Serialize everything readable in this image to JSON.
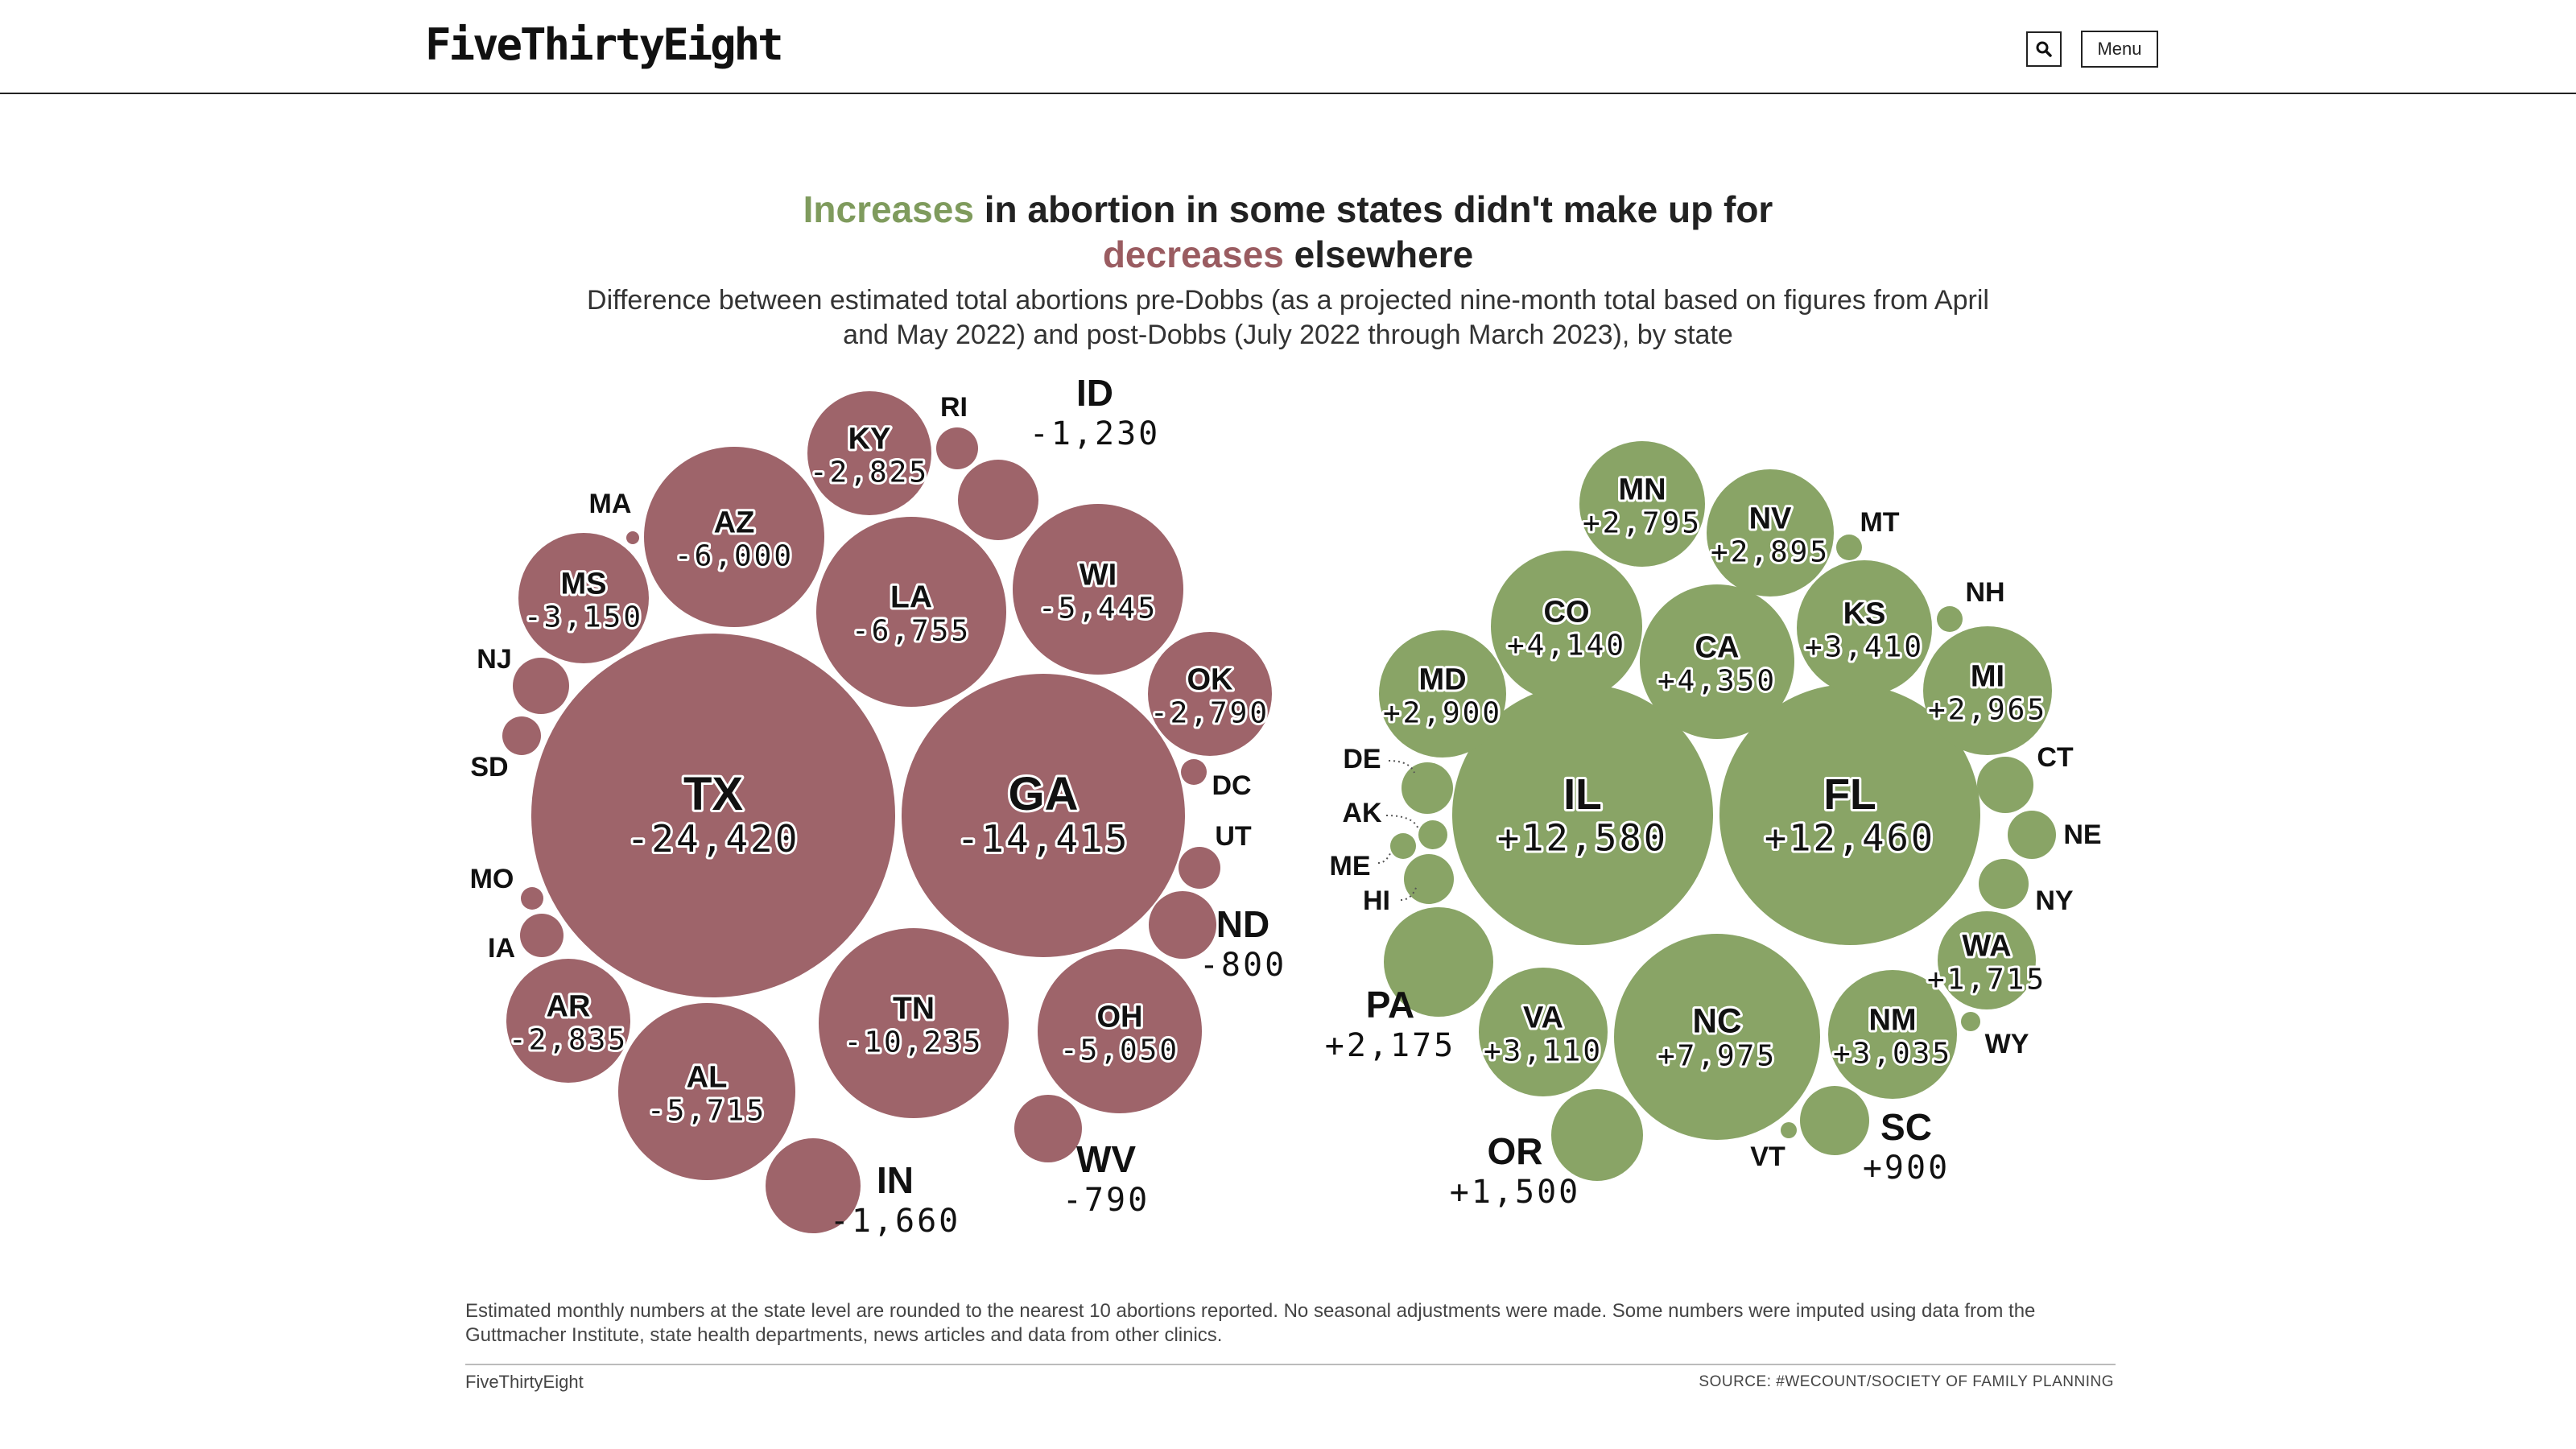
{
  "header": {
    "logo": "FiveThirtyEight",
    "menu_label": "Menu"
  },
  "title": {
    "increases": "Increases",
    "middle": " in abortion in some states didn't make up for",
    "decreases": "decreases",
    "end": " elsewhere"
  },
  "subtitle": "Difference between estimated total abortions pre-Dobbs (as a projected nine-month total based on figures from April and May 2022) and post-Dobbs (July 2022 through March 2023), by state",
  "footer": {
    "note": "Estimated monthly numbers at the state level are rounded to the nearest 10 abortions reported. No seasonal adjustments were made. Some numbers were imputed using data from the Guttmacher Institute, state health departments, news articles and data from other clinics.",
    "brand": "FiveThirtyEight",
    "source": "SOURCE: #WECOUNT/SOCIETY OF FAMILY PLANNING"
  },
  "colors": {
    "decrease": "#9e646a",
    "increase": "#89a466",
    "text": "#111111"
  },
  "chart_data": {
    "type": "bubble",
    "series": [
      {
        "name": "decreases",
        "points": [
          {
            "state": "TX",
            "value": -24420,
            "label": "-24,420"
          },
          {
            "state": "GA",
            "value": -14415,
            "label": "-14,415"
          },
          {
            "state": "TN",
            "value": -10235,
            "label": "-10,235"
          },
          {
            "state": "LA",
            "value": -6755,
            "label": "-6,755"
          },
          {
            "state": "AZ",
            "value": -6000,
            "label": "-6,000"
          },
          {
            "state": "AL",
            "value": -5715,
            "label": "-5,715"
          },
          {
            "state": "WI",
            "value": -5445,
            "label": "-5,445"
          },
          {
            "state": "OH",
            "value": -5050,
            "label": "-5,050"
          },
          {
            "state": "MS",
            "value": -3150,
            "label": "-3,150"
          },
          {
            "state": "AR",
            "value": -2835,
            "label": "-2,835"
          },
          {
            "state": "KY",
            "value": -2825,
            "label": "-2,825"
          },
          {
            "state": "OK",
            "value": -2790,
            "label": "-2,790"
          },
          {
            "state": "IN",
            "value": -1660,
            "label": "-1,660"
          },
          {
            "state": "ID",
            "value": -1230,
            "label": "-1,230"
          },
          {
            "state": "ND",
            "value": -800,
            "label": "-800"
          },
          {
            "state": "WV",
            "value": -790,
            "label": "-790"
          },
          {
            "state": "RI",
            "value": null,
            "label": ""
          },
          {
            "state": "MA",
            "value": null,
            "label": ""
          },
          {
            "state": "NJ",
            "value": null,
            "label": ""
          },
          {
            "state": "SD",
            "value": null,
            "label": ""
          },
          {
            "state": "MO",
            "value": null,
            "label": ""
          },
          {
            "state": "IA",
            "value": null,
            "label": ""
          },
          {
            "state": "DC",
            "value": null,
            "label": ""
          },
          {
            "state": "UT",
            "value": null,
            "label": ""
          }
        ]
      },
      {
        "name": "increases",
        "points": [
          {
            "state": "IL",
            "value": 12580,
            "label": "+12,580"
          },
          {
            "state": "FL",
            "value": 12460,
            "label": "+12,460"
          },
          {
            "state": "NC",
            "value": 7975,
            "label": "+7,975"
          },
          {
            "state": "CA",
            "value": 4350,
            "label": "+4,350"
          },
          {
            "state": "CO",
            "value": 4140,
            "label": "+4,140"
          },
          {
            "state": "KS",
            "value": 3410,
            "label": "+3,410"
          },
          {
            "state": "VA",
            "value": 3110,
            "label": "+3,110"
          },
          {
            "state": "NM",
            "value": 3035,
            "label": "+3,035"
          },
          {
            "state": "MI",
            "value": 2965,
            "label": "+2,965"
          },
          {
            "state": "MD",
            "value": 2900,
            "label": "+2,900"
          },
          {
            "state": "NV",
            "value": 2895,
            "label": "+2,895"
          },
          {
            "state": "MN",
            "value": 2795,
            "label": "+2,795"
          },
          {
            "state": "PA",
            "value": 2175,
            "label": "+2,175"
          },
          {
            "state": "WA",
            "value": 1715,
            "label": "+1,715"
          },
          {
            "state": "OR",
            "value": 1500,
            "label": "+1,500"
          },
          {
            "state": "SC",
            "value": 900,
            "label": "+900"
          },
          {
            "state": "MT",
            "value": null,
            "label": ""
          },
          {
            "state": "NH",
            "value": null,
            "label": ""
          },
          {
            "state": "CT",
            "value": null,
            "label": ""
          },
          {
            "state": "NE",
            "value": null,
            "label": ""
          },
          {
            "state": "NY",
            "value": null,
            "label": ""
          },
          {
            "state": "WY",
            "value": null,
            "label": ""
          },
          {
            "state": "VT",
            "value": null,
            "label": ""
          },
          {
            "state": "DE",
            "value": null,
            "label": ""
          },
          {
            "state": "AK",
            "value": null,
            "label": ""
          },
          {
            "state": "ME",
            "value": null,
            "label": ""
          },
          {
            "state": "HI",
            "value": null,
            "label": ""
          }
        ]
      }
    ]
  }
}
